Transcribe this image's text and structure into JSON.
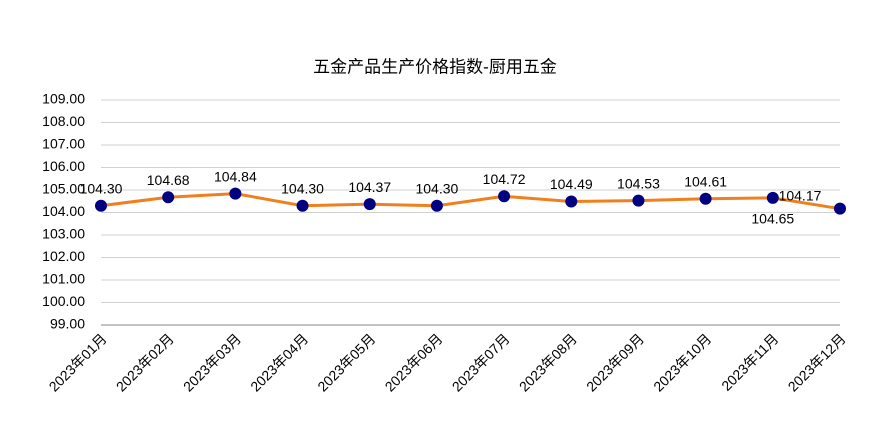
{
  "chart_data": {
    "type": "line",
    "title": "五金产品生产价格指数-厨用五金",
    "categories": [
      "2023年01月",
      "2023年02月",
      "2023年03月",
      "2023年04月",
      "2023年05月",
      "2023年06月",
      "2023年07月",
      "2023年08月",
      "2023年09月",
      "2023年10月",
      "2023年11月",
      "2023年12月"
    ],
    "series": [
      {
        "name": "厨用五金",
        "color": "#f07f1e",
        "marker_color": "#000080",
        "values": [
          104.3,
          104.68,
          104.84,
          104.3,
          104.37,
          104.3,
          104.72,
          104.49,
          104.53,
          104.61,
          104.65,
          104.17
        ],
        "value_labels": [
          "104.30",
          "104.68",
          "104.84",
          "104.30",
          "104.37",
          "104.30",
          "104.72",
          "104.49",
          "104.53",
          "104.61",
          "104.65",
          "104.17"
        ]
      }
    ],
    "ylim": [
      99,
      109
    ],
    "yticks": [
      {
        "value": 99,
        "label": "99.00"
      },
      {
        "value": 100,
        "label": "100.00"
      },
      {
        "value": 101,
        "label": "101.00"
      },
      {
        "value": 102,
        "label": "102.00"
      },
      {
        "value": 103,
        "label": "103.00"
      },
      {
        "value": 104,
        "label": "104.00"
      },
      {
        "value": 105,
        "label": "105.00"
      },
      {
        "value": 106,
        "label": "106.00"
      },
      {
        "value": 107,
        "label": "107.00"
      },
      {
        "value": 108,
        "label": "108.00"
      },
      {
        "value": 109,
        "label": "109.00"
      }
    ],
    "grid": true
  }
}
